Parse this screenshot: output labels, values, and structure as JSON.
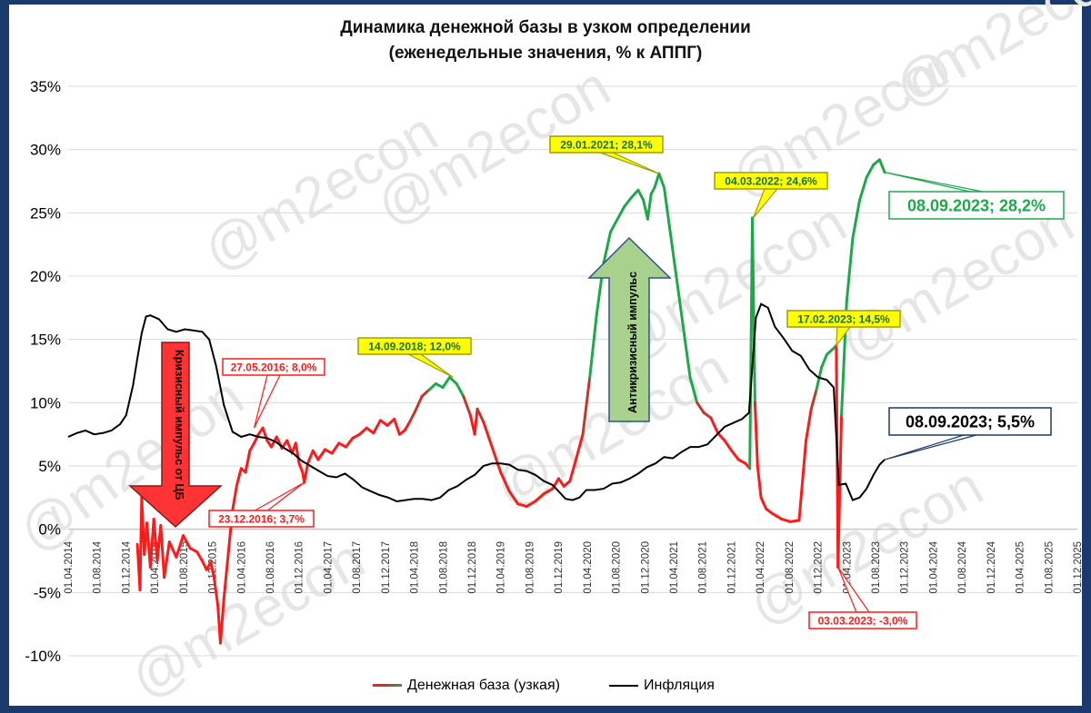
{
  "colors": {
    "base_low": "#ff1a1a",
    "base_mid": "#c0392b",
    "base_high": "#1ea84a",
    "inflation": "#000000",
    "border": "#1a3a6e",
    "callout_fill": "#ffff00",
    "green_arrow": "#a9d18e",
    "red_arrow": "#ff3333"
  },
  "watermark": "@m2econ",
  "chart_data": {
    "type": "line",
    "title": "Динамика денежной базы в узком определении",
    "subtitle": "(еженедельные значения, % к АППГ)",
    "y_tick_labels": [
      "35%",
      "30%",
      "25%",
      "20%",
      "15%",
      "10%",
      "5%",
      "0%",
      "-5%",
      "-10%"
    ],
    "ylim": [
      -10,
      35
    ],
    "x_tick_labels": [
      "01.04.2014",
      "01.08.2014",
      "01.12.2014",
      "01.04.2015",
      "01.08.2015",
      "01.12.2015",
      "01.04.2016",
      "01.08.2016",
      "01.12.2016",
      "01.04.2017",
      "01.08.2017",
      "01.12.2017",
      "01.04.2018",
      "01.08.2018",
      "01.12.2018",
      "01.04.2019",
      "01.08.2019",
      "01.12.2019",
      "01.04.2020",
      "01.08.2020",
      "01.12.2020",
      "01.04.2021",
      "01.08.2021",
      "01.12.2021",
      "01.04.2022",
      "01.08.2022",
      "01.12.2022",
      "01.04.2023",
      "01.08.2023",
      "01.12.2023",
      "01.04.2024",
      "01.08.2024",
      "01.12.2024",
      "01.04.2025",
      "01.08.2025",
      "01.12.2025"
    ],
    "legend": "bottom",
    "series": [
      {
        "name": "Денежная база (узкая)",
        "points": [
          [
            2015.05,
            -1.2
          ],
          [
            2015.08,
            -4.8
          ],
          [
            2015.1,
            2.5
          ],
          [
            2015.13,
            -2
          ],
          [
            2015.16,
            0.5
          ],
          [
            2015.2,
            -3
          ],
          [
            2015.24,
            0.8
          ],
          [
            2015.28,
            -2.5
          ],
          [
            2015.32,
            0.3
          ],
          [
            2015.36,
            -3.8
          ],
          [
            2015.42,
            -1
          ],
          [
            2015.5,
            -2.2
          ],
          [
            2015.58,
            -0.5
          ],
          [
            2015.66,
            -1.5
          ],
          [
            2015.74,
            -1.8
          ],
          [
            2015.8,
            -2.5
          ],
          [
            2015.85,
            -3.2
          ],
          [
            2015.9,
            -2.6
          ],
          [
            2015.94,
            -4
          ],
          [
            2015.98,
            -6
          ],
          [
            2016.01,
            -9
          ],
          [
            2016.05,
            -5.5
          ],
          [
            2016.1,
            -2
          ],
          [
            2016.15,
            1.5
          ],
          [
            2016.2,
            3.5
          ],
          [
            2016.25,
            4.8
          ],
          [
            2016.3,
            4.5
          ],
          [
            2016.35,
            6.2
          ],
          [
            2016.4,
            6.8
          ],
          [
            2016.45,
            7.5
          ],
          [
            2016.5,
            8.0
          ],
          [
            2016.55,
            7
          ],
          [
            2016.6,
            6.5
          ],
          [
            2016.66,
            7.3
          ],
          [
            2016.72,
            6.4
          ],
          [
            2016.78,
            7
          ],
          [
            2016.84,
            6
          ],
          [
            2016.88,
            6.8
          ],
          [
            2016.92,
            5.2
          ],
          [
            2016.96,
            4.5
          ],
          [
            2016.98,
            3.7
          ],
          [
            2017.02,
            5.2
          ],
          [
            2017.08,
            6.2
          ],
          [
            2017.14,
            5.5
          ],
          [
            2017.22,
            6.3
          ],
          [
            2017.3,
            6
          ],
          [
            2017.38,
            6.8
          ],
          [
            2017.46,
            6.5
          ],
          [
            2017.54,
            7.2
          ],
          [
            2017.62,
            7.5
          ],
          [
            2017.7,
            8
          ],
          [
            2017.78,
            7.6
          ],
          [
            2017.86,
            8.6
          ],
          [
            2017.94,
            8.2
          ],
          [
            2018.02,
            8.7
          ],
          [
            2018.08,
            7.5
          ],
          [
            2018.14,
            7.8
          ],
          [
            2018.2,
            8.5
          ],
          [
            2018.26,
            9.3
          ],
          [
            2018.34,
            10.5
          ],
          [
            2018.42,
            11
          ],
          [
            2018.5,
            11.5
          ],
          [
            2018.58,
            11.2
          ],
          [
            2018.66,
            12.0
          ],
          [
            2018.74,
            11.5
          ],
          [
            2018.82,
            10.5
          ],
          [
            2018.9,
            9
          ],
          [
            2018.95,
            7.5
          ],
          [
            2018.98,
            9.5
          ],
          [
            2019.05,
            8.5
          ],
          [
            2019.15,
            6.5
          ],
          [
            2019.25,
            4.5
          ],
          [
            2019.35,
            3
          ],
          [
            2019.45,
            2
          ],
          [
            2019.55,
            1.8
          ],
          [
            2019.65,
            2.2
          ],
          [
            2019.75,
            2.8
          ],
          [
            2019.85,
            3.2
          ],
          [
            2019.92,
            4
          ],
          [
            2019.98,
            3.4
          ],
          [
            2020.05,
            3.8
          ],
          [
            2020.12,
            5.5
          ],
          [
            2020.2,
            7.5
          ],
          [
            2020.28,
            12
          ],
          [
            2020.36,
            17
          ],
          [
            2020.44,
            21
          ],
          [
            2020.52,
            23.5
          ],
          [
            2020.6,
            24.5
          ],
          [
            2020.68,
            25.5
          ],
          [
            2020.76,
            26.2
          ],
          [
            2020.84,
            26.8
          ],
          [
            2020.9,
            26
          ],
          [
            2020.95,
            24.5
          ],
          [
            2020.99,
            26.5
          ],
          [
            2021.03,
            27
          ],
          [
            2021.08,
            28.1
          ],
          [
            2021.14,
            27
          ],
          [
            2021.2,
            24
          ],
          [
            2021.28,
            20
          ],
          [
            2021.36,
            16
          ],
          [
            2021.44,
            12
          ],
          [
            2021.52,
            10
          ],
          [
            2021.6,
            9.2
          ],
          [
            2021.68,
            8.8
          ],
          [
            2021.76,
            7.6
          ],
          [
            2021.84,
            7
          ],
          [
            2021.92,
            6.2
          ],
          [
            2022.0,
            5.5
          ],
          [
            2022.08,
            5.2
          ],
          [
            2022.13,
            4.8
          ],
          [
            2022.16,
            24.6
          ],
          [
            2022.19,
            10
          ],
          [
            2022.22,
            5
          ],
          [
            2022.26,
            2.5
          ],
          [
            2022.32,
            1.6
          ],
          [
            2022.4,
            1.2
          ],
          [
            2022.5,
            0.8
          ],
          [
            2022.6,
            0.6
          ],
          [
            2022.7,
            0.7
          ],
          [
            2022.78,
            7
          ],
          [
            2022.84,
            9.5
          ],
          [
            2022.9,
            11
          ],
          [
            2022.96,
            12.8
          ],
          [
            2023.02,
            13.8
          ],
          [
            2023.1,
            14.3
          ],
          [
            2023.13,
            14.5
          ],
          [
            2023.15,
            -3.0
          ],
          [
            2023.19,
            9
          ],
          [
            2023.25,
            18
          ],
          [
            2023.32,
            23
          ],
          [
            2023.4,
            26
          ],
          [
            2023.48,
            27.8
          ],
          [
            2023.56,
            28.8
          ],
          [
            2023.63,
            29.2
          ],
          [
            2023.69,
            28.2
          ]
        ]
      },
      {
        "name": "Инфляция",
        "points": [
          [
            2014.25,
            7.3
          ],
          [
            2014.35,
            7.6
          ],
          [
            2014.45,
            7.8
          ],
          [
            2014.55,
            7.5
          ],
          [
            2014.65,
            7.6
          ],
          [
            2014.75,
            7.8
          ],
          [
            2014.85,
            8.3
          ],
          [
            2014.92,
            9
          ],
          [
            2015.0,
            11.4
          ],
          [
            2015.05,
            13.5
          ],
          [
            2015.1,
            15.5
          ],
          [
            2015.15,
            16.8
          ],
          [
            2015.2,
            16.9
          ],
          [
            2015.3,
            16.6
          ],
          [
            2015.4,
            15.8
          ],
          [
            2015.5,
            15.6
          ],
          [
            2015.6,
            15.8
          ],
          [
            2015.7,
            15.7
          ],
          [
            2015.8,
            15.6
          ],
          [
            2015.88,
            15
          ],
          [
            2015.96,
            12.9
          ],
          [
            2016.05,
            9.8
          ],
          [
            2016.15,
            7.7
          ],
          [
            2016.25,
            7.3
          ],
          [
            2016.35,
            7.5
          ],
          [
            2016.45,
            7.3
          ],
          [
            2016.55,
            7.2
          ],
          [
            2016.65,
            6.9
          ],
          [
            2016.75,
            6.4
          ],
          [
            2016.85,
            6
          ],
          [
            2016.95,
            5.4
          ],
          [
            2017.05,
            5
          ],
          [
            2017.15,
            4.6
          ],
          [
            2017.25,
            4.2
          ],
          [
            2017.35,
            4.1
          ],
          [
            2017.45,
            4.4
          ],
          [
            2017.55,
            3.9
          ],
          [
            2017.65,
            3.3
          ],
          [
            2017.75,
            3
          ],
          [
            2017.85,
            2.7
          ],
          [
            2017.95,
            2.5
          ],
          [
            2018.05,
            2.2
          ],
          [
            2018.15,
            2.3
          ],
          [
            2018.25,
            2.4
          ],
          [
            2018.35,
            2.4
          ],
          [
            2018.45,
            2.3
          ],
          [
            2018.55,
            2.5
          ],
          [
            2018.65,
            3.1
          ],
          [
            2018.75,
            3.4
          ],
          [
            2018.85,
            3.9
          ],
          [
            2018.95,
            4.3
          ],
          [
            2019.05,
            5
          ],
          [
            2019.15,
            5.2
          ],
          [
            2019.25,
            5.2
          ],
          [
            2019.35,
            5.1
          ],
          [
            2019.45,
            4.7
          ],
          [
            2019.55,
            4.6
          ],
          [
            2019.65,
            4.3
          ],
          [
            2019.75,
            3.8
          ],
          [
            2019.85,
            3.5
          ],
          [
            2019.92,
            3
          ],
          [
            2020.0,
            2.4
          ],
          [
            2020.08,
            2.3
          ],
          [
            2020.16,
            2.5
          ],
          [
            2020.24,
            3.1
          ],
          [
            2020.34,
            3.1
          ],
          [
            2020.44,
            3.2
          ],
          [
            2020.54,
            3.6
          ],
          [
            2020.64,
            3.7
          ],
          [
            2020.74,
            4
          ],
          [
            2020.84,
            4.4
          ],
          [
            2020.94,
            4.9
          ],
          [
            2021.04,
            5.2
          ],
          [
            2021.14,
            5.7
          ],
          [
            2021.24,
            5.6
          ],
          [
            2021.34,
            6.1
          ],
          [
            2021.44,
            6.5
          ],
          [
            2021.54,
            6.5
          ],
          [
            2021.64,
            6.7
          ],
          [
            2021.74,
            7.4
          ],
          [
            2021.84,
            8.1
          ],
          [
            2021.94,
            8.4
          ],
          [
            2022.04,
            8.7
          ],
          [
            2022.12,
            9.2
          ],
          [
            2022.2,
            16.7
          ],
          [
            2022.26,
            17.8
          ],
          [
            2022.34,
            17.5
          ],
          [
            2022.42,
            16
          ],
          [
            2022.52,
            15.1
          ],
          [
            2022.62,
            14.1
          ],
          [
            2022.72,
            13.7
          ],
          [
            2022.82,
            12.6
          ],
          [
            2022.92,
            12
          ],
          [
            2023.02,
            11.8
          ],
          [
            2023.1,
            11.2
          ],
          [
            2023.16,
            3.5
          ],
          [
            2023.24,
            3.6
          ],
          [
            2023.32,
            2.3
          ],
          [
            2023.4,
            2.5
          ],
          [
            2023.48,
            3.2
          ],
          [
            2023.56,
            4.3
          ],
          [
            2023.63,
            5.1
          ],
          [
            2023.69,
            5.5
          ]
        ]
      }
    ],
    "annotations": [
      {
        "text": "27.05.2016; 8,0%",
        "style": "red-box",
        "x": 2016.4,
        "y": 8.0
      },
      {
        "text": "23.12.2016; 3,7%",
        "style": "red-box",
        "x": 2016.98,
        "y": 3.7
      },
      {
        "text": "14.09.2018; 12,0%",
        "style": "yellow-box",
        "x": 2018.7,
        "y": 12.0
      },
      {
        "text": "29.01.2021; 28,1%",
        "style": "yellow-box",
        "x": 2021.08,
        "y": 28.1
      },
      {
        "text": "04.03.2022; 24,6%",
        "style": "yellow-box",
        "x": 2022.17,
        "y": 24.6
      },
      {
        "text": "17.02.2023; 14,5%",
        "style": "yellow-box",
        "x": 2023.13,
        "y": 14.5
      },
      {
        "text": "03.03.2023; -3,0%",
        "style": "red-box",
        "x": 2023.15,
        "y": -3.0
      },
      {
        "text": "08.09.2023; 28,2%",
        "style": "green-big",
        "x": 2023.69,
        "y": 28.2
      },
      {
        "text": "08.09.2023; 5,5%",
        "style": "navy-big",
        "x": 2023.69,
        "y": 5.5
      }
    ],
    "arrows": [
      {
        "text": "Кризисный импульс от ЦБ",
        "direction": "down",
        "color": "red"
      },
      {
        "text": "Антикризисный импульс",
        "direction": "up",
        "color": "green"
      }
    ]
  }
}
